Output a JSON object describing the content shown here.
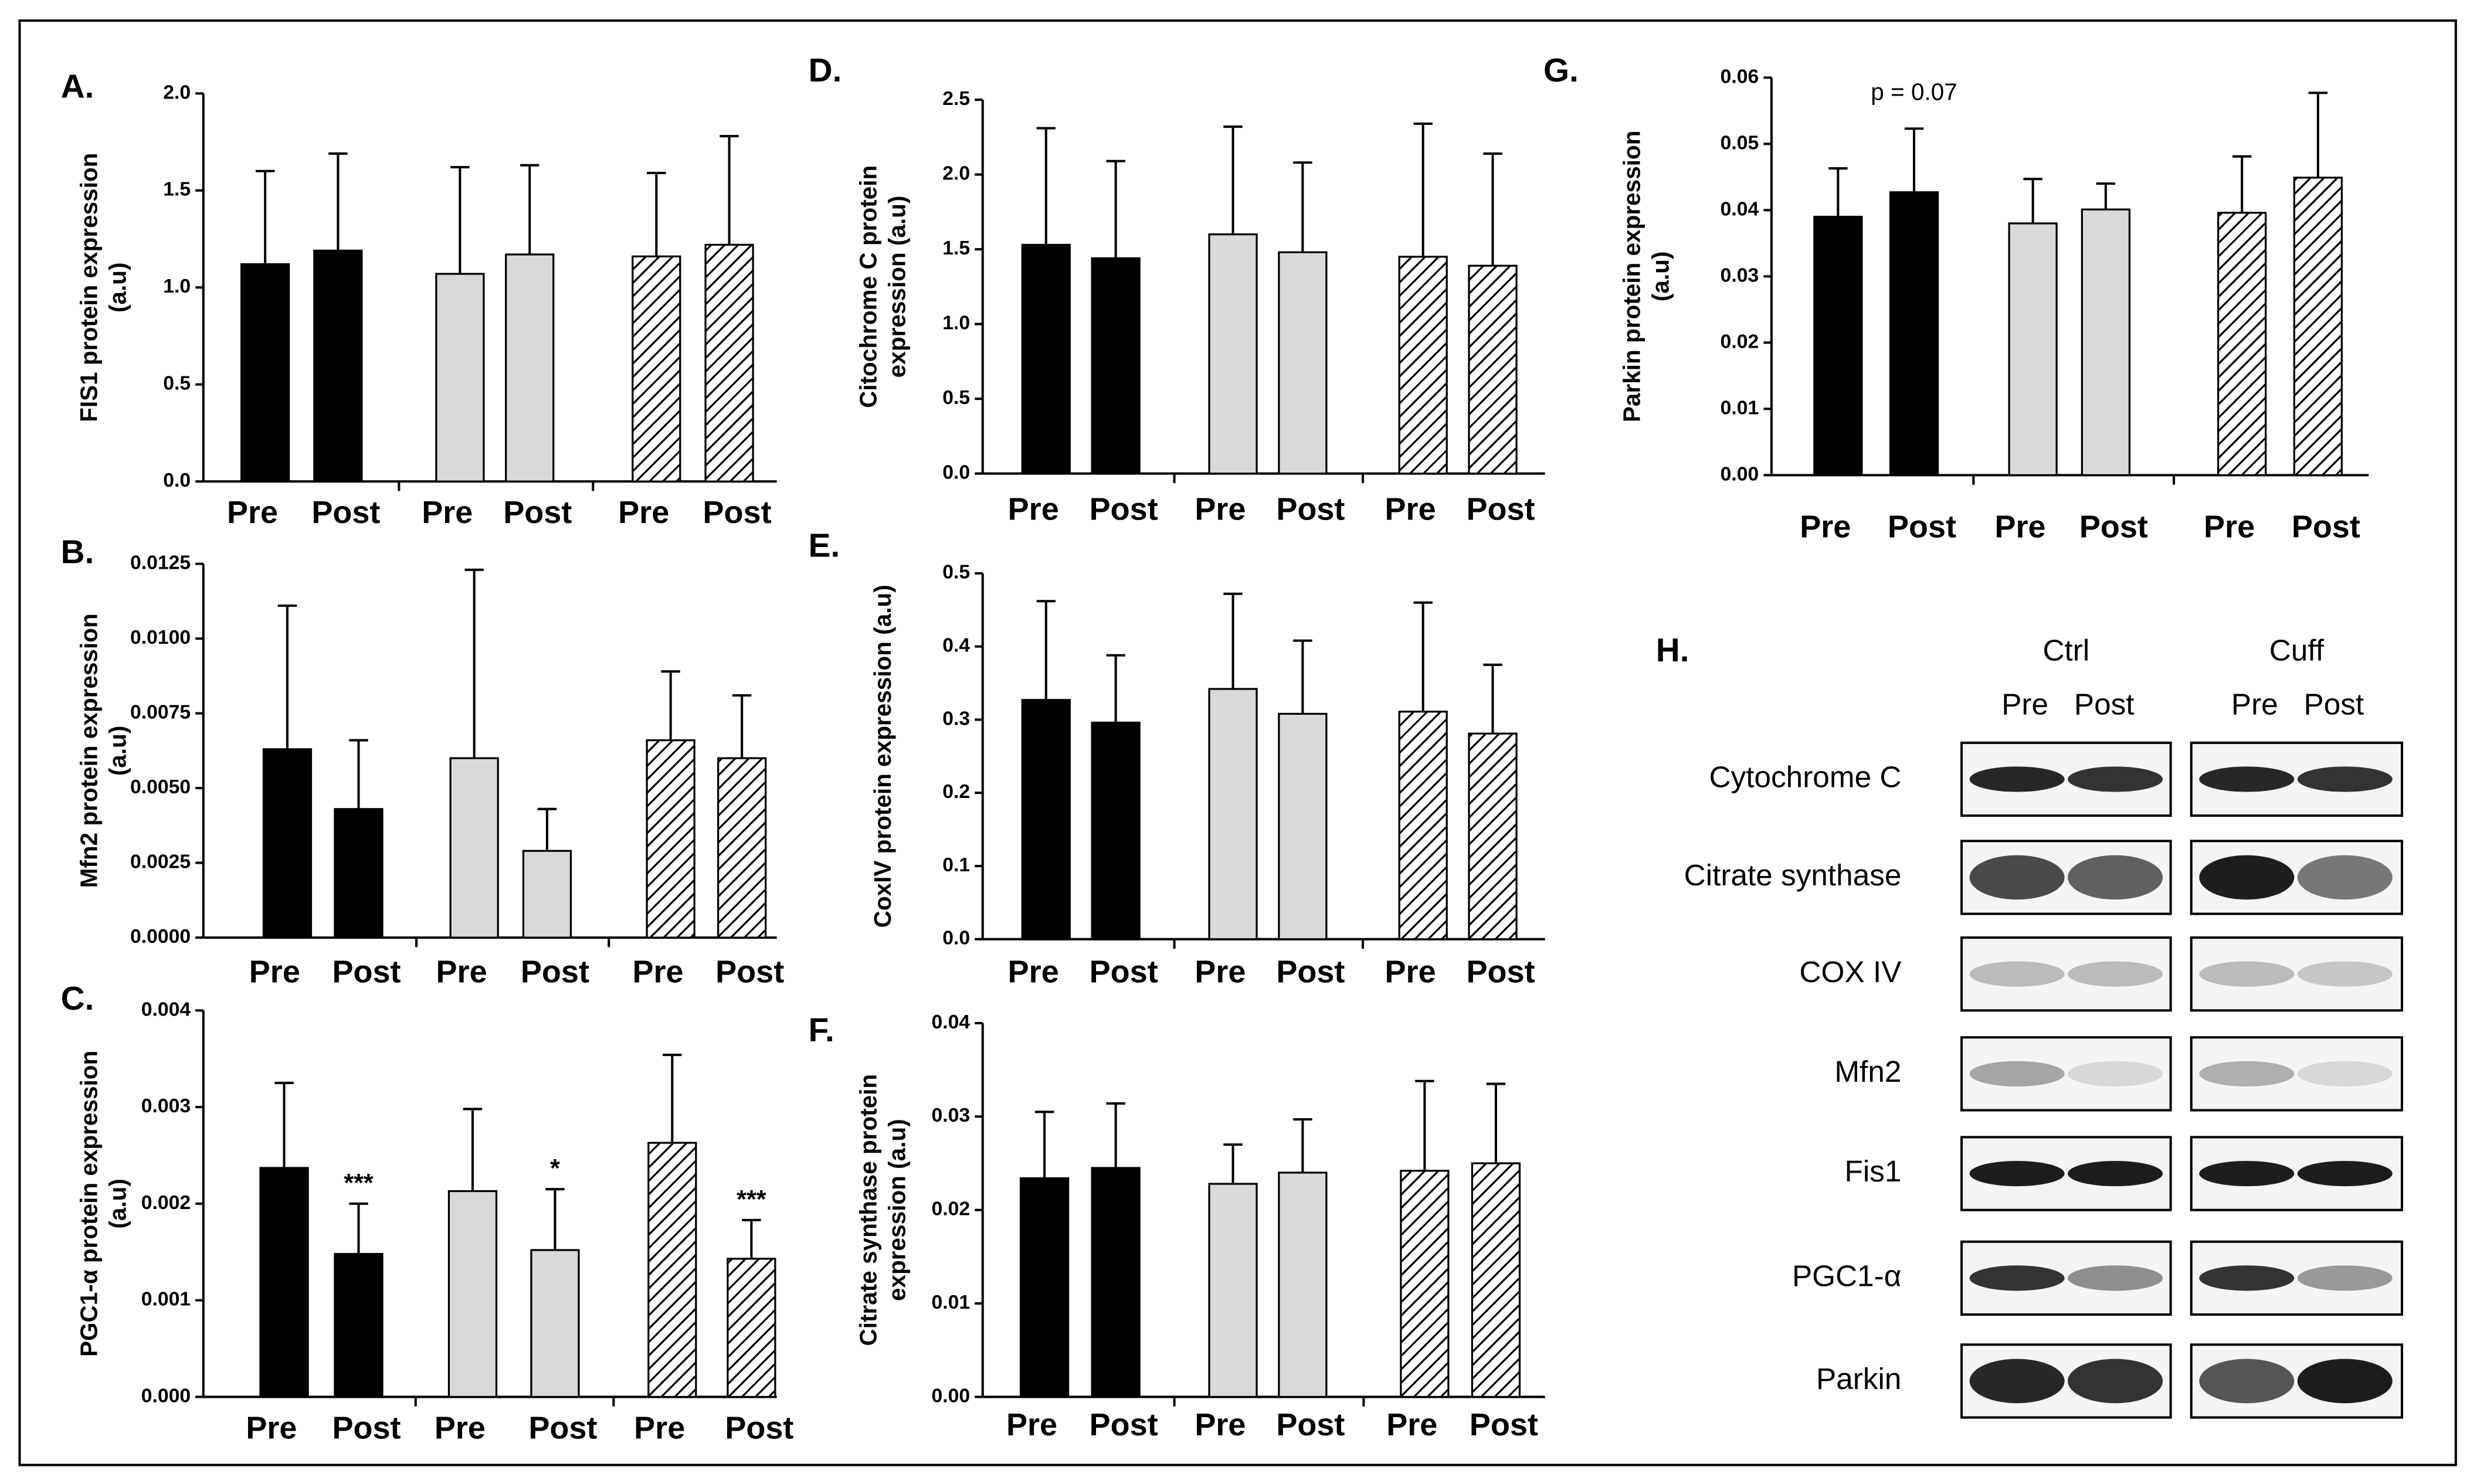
{
  "chart_data": [
    {
      "type": "bar",
      "label": "A.",
      "ylabel": [
        "FIS1 protein expression",
        "(a.u)"
      ],
      "categories": [
        "Pre",
        "Post",
        "Pre",
        "Post",
        "Pre",
        "Post"
      ],
      "values": [
        1.12,
        1.19,
        1.07,
        1.17,
        1.16,
        1.22
      ],
      "errors": [
        0.48,
        0.5,
        0.55,
        0.46,
        0.43,
        0.56
      ],
      "colors": [
        "#000000",
        "#000000",
        "#d9d9d9",
        "#d9d9d9",
        "#ffffff",
        "#ffffff"
      ],
      "hatch": [
        false,
        false,
        false,
        false,
        true,
        true
      ],
      "ylim": [
        0,
        2
      ],
      "yticks": [
        {
          "value": 0,
          "label": "0.0"
        },
        0.5,
        {
          "value": 1,
          "label": "1.0"
        },
        1.5,
        {
          "value": 2,
          "label": "2.0"
        }
      ]
    },
    {
      "type": "bar",
      "label": "B.",
      "ylabel": [
        "Mfn2 protein expression",
        "(a.u)"
      ],
      "categories": [
        "Pre",
        "Post",
        "Pre",
        "Post",
        "Pre",
        "Post"
      ],
      "values": [
        0.0063,
        0.0043,
        0.006,
        0.0029,
        0.0066,
        0.006
      ],
      "errors": [
        0.0048,
        0.0023,
        0.0063,
        0.0014,
        0.0023,
        0.0021
      ],
      "colors": [
        "#000000",
        "#000000",
        "#d9d9d9",
        "#d9d9d9",
        "#ffffff",
        "#ffffff"
      ],
      "hatch": [
        false,
        false,
        false,
        false,
        true,
        true
      ],
      "ylim": [
        0,
        0.0125
      ],
      "yticks": [
        {
          "value": 0,
          "label": "0.0000"
        },
        0.0025,
        {
          "value": 0.005,
          "label": "0.0050"
        },
        0.0075,
        {
          "value": 0.01,
          "label": "0.0100"
        },
        0.0125
      ]
    },
    {
      "type": "bar",
      "label": "C.",
      "ylabel": [
        "PGC1-α protein expression",
        "(a.u)"
      ],
      "categories": [
        "Pre",
        "Post",
        "Pre",
        "Post",
        "Pre",
        "Post"
      ],
      "values": [
        0.00237,
        0.00148,
        0.00213,
        0.00152,
        0.00263,
        0.00143
      ],
      "errors": [
        0.00088,
        0.00052,
        0.00085,
        0.00063,
        0.00091,
        0.0004
      ],
      "colors": [
        "#000000",
        "#000000",
        "#d9d9d9",
        "#d9d9d9",
        "#ffffff",
        "#ffffff"
      ],
      "hatch": [
        false,
        false,
        false,
        false,
        true,
        true
      ],
      "annotations": [
        {
          "text": "***",
          "index": 1
        },
        {
          "text": "*",
          "index": 3
        },
        {
          "text": "***",
          "index": 5
        }
      ],
      "ylim": [
        0,
        0.004
      ],
      "yticks": [
        {
          "value": 0,
          "label": "0.000"
        },
        0.001,
        0.002,
        0.003,
        0.004
      ]
    },
    {
      "type": "bar",
      "label": "D.",
      "ylabel": [
        "Citochrome C protein",
        "expression (a.u)"
      ],
      "categories": [
        "Pre",
        "Post",
        "Pre",
        "Post",
        "Pre",
        "Post"
      ],
      "values": [
        1.53,
        1.44,
        1.6,
        1.48,
        1.45,
        1.39
      ],
      "errors": [
        0.78,
        0.65,
        0.72,
        0.6,
        0.89,
        0.75
      ],
      "colors": [
        "#000000",
        "#000000",
        "#d9d9d9",
        "#d9d9d9",
        "#ffffff",
        "#ffffff"
      ],
      "hatch": [
        false,
        false,
        false,
        false,
        true,
        true
      ],
      "ylim": [
        0,
        2.5
      ],
      "yticks": [
        {
          "value": 0,
          "label": "0.0"
        },
        0.5,
        {
          "value": 1,
          "label": "1.0"
        },
        1.5,
        {
          "value": 2,
          "label": "2.0"
        },
        2.5
      ]
    },
    {
      "type": "bar",
      "label": "E.",
      "ylabel": [
        "CoxIV protein expression (a.u)"
      ],
      "categories": [
        "Pre",
        "Post",
        "Pre",
        "Post",
        "Pre",
        "Post"
      ],
      "values": [
        0.327,
        0.296,
        0.342,
        0.308,
        0.311,
        0.281
      ],
      "errors": [
        0.135,
        0.092,
        0.13,
        0.1,
        0.149,
        0.094
      ],
      "colors": [
        "#000000",
        "#000000",
        "#d9d9d9",
        "#d9d9d9",
        "#ffffff",
        "#ffffff"
      ],
      "hatch": [
        false,
        false,
        false,
        false,
        true,
        true
      ],
      "ylim": [
        0,
        0.5
      ],
      "yticks": [
        {
          "value": 0,
          "label": "0.0"
        },
        0.1,
        0.2,
        0.3,
        0.4,
        0.5
      ]
    },
    {
      "type": "bar",
      "label": "F.",
      "ylabel": [
        "Citrate synthase protein",
        "expression (a.u)"
      ],
      "categories": [
        "Pre",
        "Post",
        "Pre",
        "Post",
        "Pre",
        "Post"
      ],
      "values": [
        0.0234,
        0.0245,
        0.0228,
        0.024,
        0.0242,
        0.025
      ],
      "errors": [
        0.0071,
        0.0069,
        0.0042,
        0.0057,
        0.0096,
        0.0085
      ],
      "colors": [
        "#000000",
        "#000000",
        "#d9d9d9",
        "#d9d9d9",
        "#ffffff",
        "#ffffff"
      ],
      "hatch": [
        false,
        false,
        false,
        false,
        true,
        true
      ],
      "ylim": [
        0,
        0.04
      ],
      "yticks": [
        {
          "value": 0,
          "label": "0.00"
        },
        0.01,
        0.02,
        0.03,
        0.04
      ]
    },
    {
      "type": "bar",
      "label": "G.",
      "ylabel": [
        "Parkin protein expression",
        "(a.u)"
      ],
      "categories": [
        "Pre",
        "Post",
        "Pre",
        "Post",
        "Pre",
        "Post"
      ],
      "values": [
        0.039,
        0.0427,
        0.038,
        0.0401,
        0.0396,
        0.0449
      ],
      "errors": [
        0.0073,
        0.0096,
        0.0067,
        0.0039,
        0.0085,
        0.0128
      ],
      "colors": [
        "#000000",
        "#000000",
        "#d9d9d9",
        "#d9d9d9",
        "#ffffff",
        "#ffffff"
      ],
      "hatch": [
        false,
        false,
        false,
        false,
        true,
        true
      ],
      "annotations": [
        {
          "text": "p = 0.07",
          "index": 1
        }
      ],
      "ylim": [
        0,
        0.06
      ],
      "yticks": [
        {
          "value": 0,
          "label": "0.00"
        },
        0.01,
        0.02,
        0.03,
        0.04,
        0.05,
        0.06
      ]
    }
  ],
  "blot": {
    "label": "H.",
    "groups": [
      {
        "name": "Ctrl",
        "lanes": [
          "Pre",
          "Post"
        ]
      },
      {
        "name": "Cuff",
        "lanes": [
          "Pre",
          "Post"
        ]
      }
    ],
    "rows": [
      "Cytochrome C",
      "Citrate synthase",
      "COX IV",
      "Mfn2",
      "Fis1",
      "PGC1-α",
      "Parkin"
    ]
  }
}
